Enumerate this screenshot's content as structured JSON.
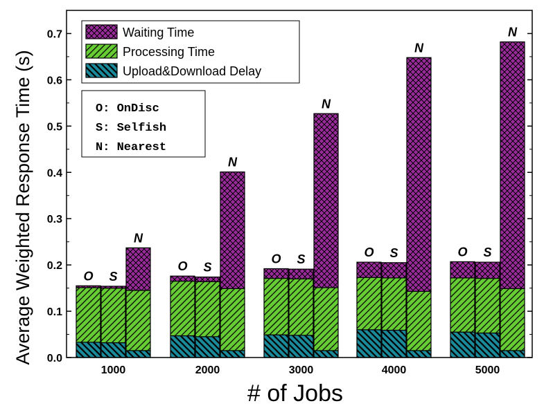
{
  "chart_data": {
    "type": "bar",
    "stacked": true,
    "xlabel": "# of Jobs",
    "ylabel": "Average Weighted Response Time (s)",
    "ylim": [
      0,
      0.75
    ],
    "yticks": [
      0.0,
      0.1,
      0.2,
      0.3,
      0.4,
      0.5,
      0.6,
      0.7
    ],
    "ytick_labels": [
      "0.0",
      "0.1",
      "0.2",
      "0.3",
      "0.4",
      "0.5",
      "0.6",
      "0.7"
    ],
    "categories": [
      "1000",
      "2000",
      "3000",
      "4000",
      "5000"
    ],
    "groups": [
      "O",
      "S",
      "N"
    ],
    "series": [
      {
        "name": "Upload&Download Delay",
        "color": "#1a8a9a",
        "values": [
          [
            0.033,
            0.032,
            0.015
          ],
          [
            0.047,
            0.045,
            0.015
          ],
          [
            0.049,
            0.048,
            0.015
          ],
          [
            0.06,
            0.059,
            0.015
          ],
          [
            0.055,
            0.053,
            0.015
          ]
        ]
      },
      {
        "name": "Processing Time",
        "color": "#66cc33",
        "values": [
          [
            0.118,
            0.118,
            0.13
          ],
          [
            0.118,
            0.119,
            0.134
          ],
          [
            0.122,
            0.122,
            0.136
          ],
          [
            0.113,
            0.113,
            0.128
          ],
          [
            0.117,
            0.118,
            0.134
          ]
        ]
      },
      {
        "name": "Waiting Time",
        "color": "#9b2a9b",
        "values": [
          [
            0.004,
            0.004,
            0.092
          ],
          [
            0.011,
            0.01,
            0.252
          ],
          [
            0.021,
            0.021,
            0.376
          ],
          [
            0.033,
            0.033,
            0.505
          ],
          [
            0.035,
            0.035,
            0.533
          ]
        ]
      }
    ],
    "legend": {
      "position": "top-left",
      "entries": [
        "Waiting Time",
        "Processing Time",
        "Upload&Download Delay"
      ]
    },
    "abbreviations": [
      "O: OnDisc",
      "S: Selfish",
      "N: Nearest"
    ],
    "bar_labels": [
      [
        "O",
        "S",
        "N"
      ],
      [
        "O",
        "S",
        "N"
      ],
      [
        "O",
        "S",
        "N"
      ],
      [
        "O",
        "S",
        "N"
      ],
      [
        "O",
        "S",
        "N"
      ]
    ],
    "grid": false
  }
}
